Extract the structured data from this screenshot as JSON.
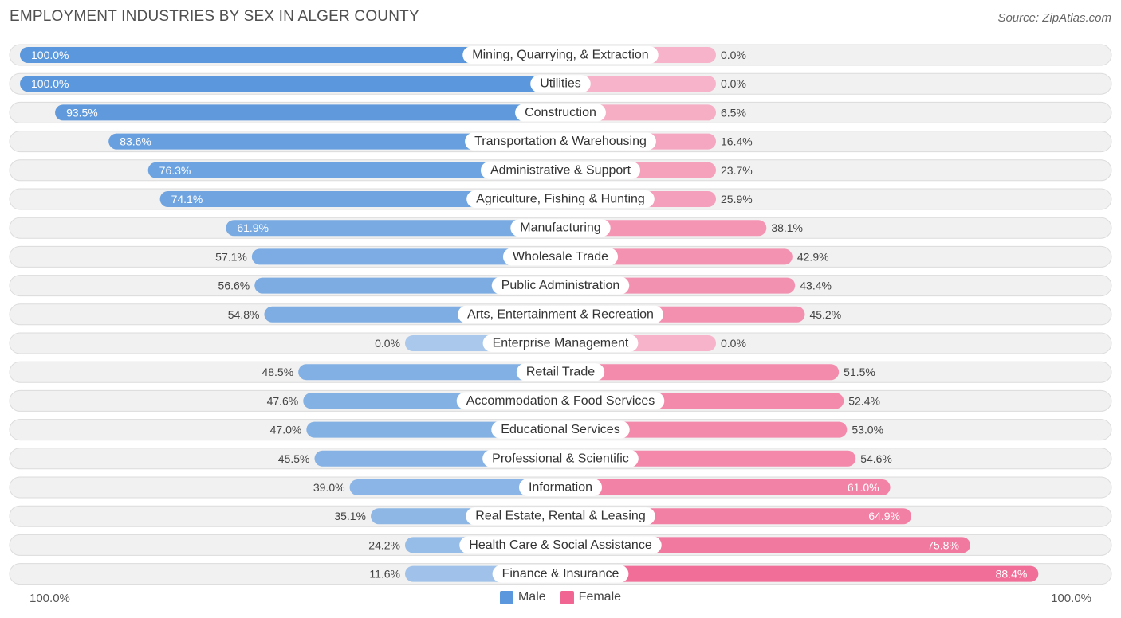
{
  "header": {
    "title": "EMPLOYMENT INDUSTRIES BY SEX IN ALGER COUNTY",
    "source": "Source: ZipAtlas.com"
  },
  "axis": {
    "left_label": "100.0%",
    "right_label": "100.0%"
  },
  "legend": {
    "male_label": "Male",
    "female_label": "Female"
  },
  "colors": {
    "male_strong": "#5b97dc",
    "male_light": "#a9c8ec",
    "female_strong": "#f06592",
    "female_light": "#f6b3c9",
    "row_bg": "#f1f1f1"
  },
  "chart_data": {
    "type": "bar",
    "orientation": "horizontal-diverging",
    "title": "EMPLOYMENT INDUSTRIES BY SEX IN ALGER COUNTY",
    "categories": [
      "Mining, Quarrying, & Extraction",
      "Utilities",
      "Construction",
      "Transportation & Warehousing",
      "Administrative & Support",
      "Agriculture, Fishing & Hunting",
      "Manufacturing",
      "Wholesale Trade",
      "Public Administration",
      "Arts, Entertainment & Recreation",
      "Enterprise Management",
      "Retail Trade",
      "Accommodation & Food Services",
      "Educational Services",
      "Professional & Scientific",
      "Information",
      "Real Estate, Rental & Leasing",
      "Health Care & Social Assistance",
      "Finance & Insurance"
    ],
    "series": [
      {
        "name": "Male",
        "values": [
          100.0,
          100.0,
          93.5,
          83.6,
          76.3,
          74.1,
          61.9,
          57.1,
          56.6,
          54.8,
          0.0,
          48.5,
          47.6,
          47.0,
          45.5,
          39.0,
          35.1,
          24.2,
          11.6
        ],
        "labels": [
          "100.0%",
          "100.0%",
          "93.5%",
          "83.6%",
          "76.3%",
          "74.1%",
          "61.9%",
          "57.1%",
          "56.6%",
          "54.8%",
          "0.0%",
          "48.5%",
          "47.6%",
          "47.0%",
          "45.5%",
          "39.0%",
          "35.1%",
          "24.2%",
          "11.6%"
        ]
      },
      {
        "name": "Female",
        "values": [
          0.0,
          0.0,
          6.5,
          16.4,
          23.7,
          25.9,
          38.1,
          42.9,
          43.4,
          45.2,
          0.0,
          51.5,
          52.4,
          53.0,
          54.6,
          61.0,
          64.9,
          75.8,
          88.4
        ],
        "labels": [
          "0.0%",
          "0.0%",
          "6.5%",
          "16.4%",
          "23.7%",
          "25.9%",
          "38.1%",
          "42.9%",
          "43.4%",
          "45.2%",
          "0.0%",
          "51.5%",
          "52.4%",
          "53.0%",
          "54.6%",
          "61.0%",
          "64.9%",
          "75.8%",
          "88.4%"
        ]
      }
    ],
    "xlim": [
      -100,
      100
    ],
    "legend_position": "bottom-center"
  }
}
